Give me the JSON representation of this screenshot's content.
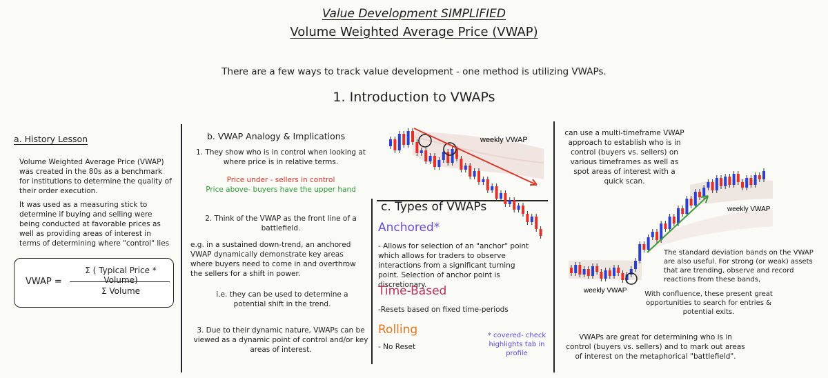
{
  "title_line1": "Value Development SIMPLIFIED",
  "title_line2": "Volume Weighted Average Price (VWAP)",
  "intro": "There are a few ways to track value development - one method is utilizing VWAPs.",
  "section_title": "1. Introduction to VWAPs",
  "history": {
    "heading": "a. History Lesson",
    "p1": "Volume Weighted Average Price (VWAP) was created in the 80s as a benchmark for institutions to determine the quality of their order execution.",
    "p2": "It was used as a measuring stick to determine if buying and selling were being conducted at favorable prices as well as providing areas of interest in terms of determining where \"control\" lies"
  },
  "formula": {
    "lhs": "VWAP =",
    "numerator": "Σ ( Typical Price * Volume)",
    "denominator": "Σ Volume"
  },
  "analogy": {
    "heading": "b. VWAP Analogy & Implications",
    "p1": "1. They show who is in control when looking at where price is in relative terms.",
    "under": "Price under - sellers in control",
    "above": "Price above- buyers have the upper hand",
    "p2": "2.  Think of the VWAP as the front line of a battlefield.",
    "p3": "e.g. in a sustained down-trend, an anchored VWAP dynamically demonstrate key areas where buyers need to come in and overthrow the sellers for a shift in power.",
    "p4": "i.e. they can be used to determine a potential shift in the trend.",
    "p5": "3. Due to their dynamic nature, VWAPs can be viewed as a dynamic point of control and/or key areas of interest."
  },
  "types": {
    "heading": "c. Types of VWAPs",
    "anchored_label": "Anchored*",
    "anchored_desc": "- Allows for selection of an \"anchor\" point which allows for traders to observe interactions from a significant turning point. Selection of anchor point is discretionary.",
    "time_label": "Time-Based",
    "time_desc": "-Resets based on fixed time-periods",
    "rolling_label": "Rolling",
    "rolling_desc": "- No Reset",
    "note": "* covered- check highlights tab in profile"
  },
  "chart1": {
    "label": "weekly VWAP"
  },
  "right": {
    "p1": "can use a multi-timeframe VWAP approach to establish who is in control (buyers vs. sellers) on various timeframes as well as spot areas of interest with a quick scan.",
    "chart_label_top": "weekly VWAP",
    "chart_label_bottom": "weekly VWAP",
    "p2": "The standard deviation bands on the VWAP are also useful. For strong (or weak) assets that are trending, observe and record reactions from these bands,",
    "p3": "With confluence, these present great opportunities to search for entries & potential exits.",
    "p4": "VWAPs are great for determining who is in control (buyers vs. sellers) and to mark out areas of interest on the metaphorical \"battlefield\"."
  },
  "colors": {
    "red": "#d3352b",
    "green": "#2f9a35",
    "candle_blue": "#2b3fd0",
    "candle_red": "#e0312a"
  }
}
